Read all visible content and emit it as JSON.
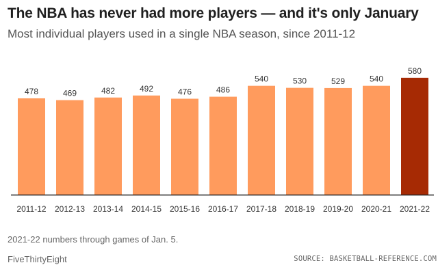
{
  "title": "The NBA has never had more players — and it's only January",
  "subtitle": "Most individual players used in a single NBA season, since 2011-12",
  "footnote": "2021-22 numbers through games of Jan. 5.",
  "brand": "FiveThirtyEight",
  "source": "SOURCE: BASKETBALL-REFERENCE.COM",
  "colors": {
    "bar": "#ff9b5d",
    "highlight": "#a62a04",
    "baseline": "#222222"
  },
  "chart_data": {
    "type": "bar",
    "title": "The NBA has never had more players — and it's only January",
    "subtitle": "Most individual players used in a single NBA season, since 2011-12",
    "categories": [
      "2011-12",
      "2012-13",
      "2013-14",
      "2014-15",
      "2015-16",
      "2016-17",
      "2017-18",
      "2018-19",
      "2019-20",
      "2020-21",
      "2021-22"
    ],
    "values": [
      478,
      469,
      482,
      492,
      476,
      486,
      540,
      530,
      529,
      540,
      580
    ],
    "data_labels": [
      "478",
      "469",
      "482",
      "492",
      "476",
      "486",
      "540",
      "530",
      "529",
      "540",
      "580"
    ],
    "highlight_index": 10,
    "ylim": [
      0,
      610
    ],
    "grid": false,
    "legend": "none"
  }
}
